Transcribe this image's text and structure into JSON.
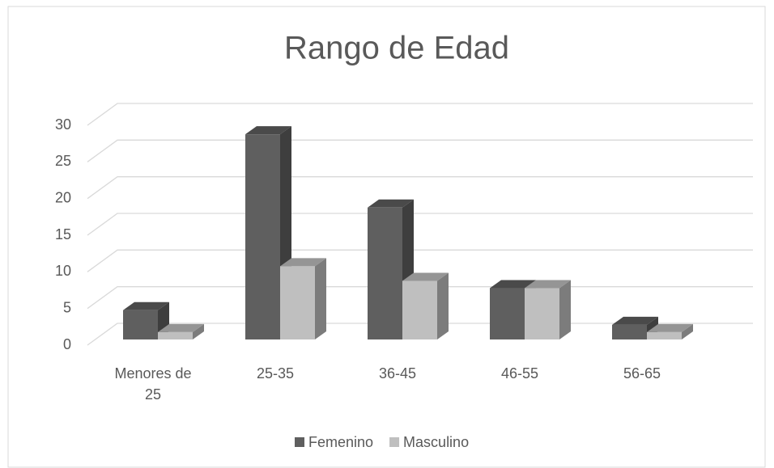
{
  "chart_data": {
    "type": "bar3d",
    "title": "Rango de Edad",
    "categories": [
      "Menores de 25",
      "25-35",
      "36-45",
      "46-55",
      "56-65"
    ],
    "series": [
      {
        "name": "Femenino",
        "color": "#5f5f5f",
        "values": [
          4,
          28,
          18,
          7,
          2
        ]
      },
      {
        "name": "Masculino",
        "color": "#bfbfbf",
        "values": [
          1,
          10,
          8,
          7,
          1
        ]
      }
    ],
    "ylim": [
      0,
      30
    ],
    "yticks": [
      0,
      5,
      10,
      15,
      20,
      25,
      30
    ],
    "grid": true,
    "legend": "bottom"
  }
}
